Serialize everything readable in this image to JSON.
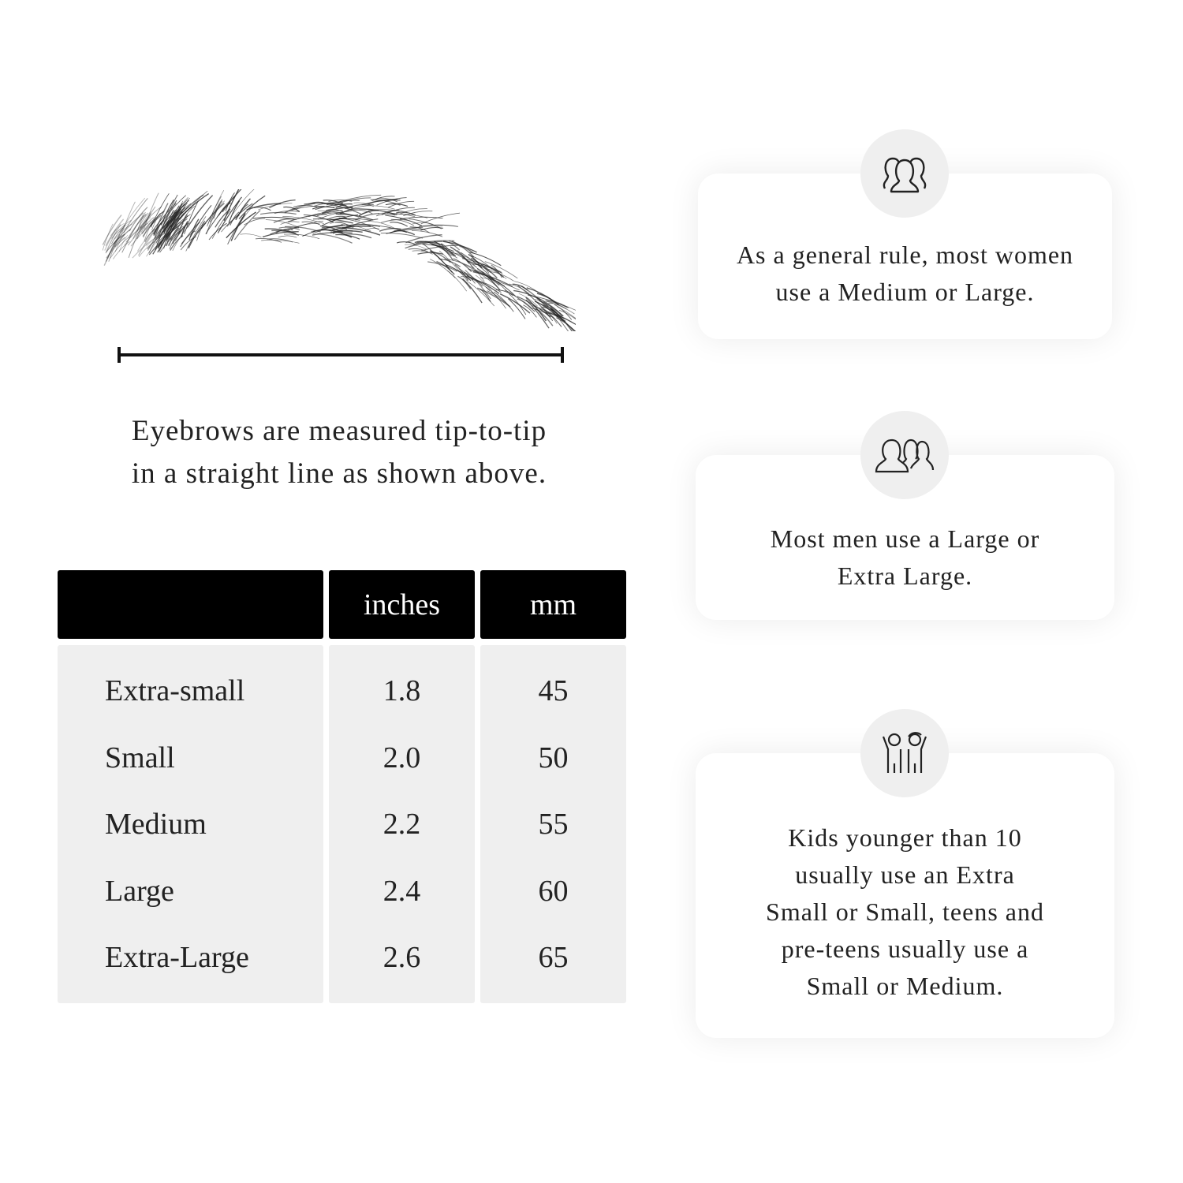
{
  "caption": {
    "line1": "Eyebrows are measured tip-to-tip",
    "line2": "in a straight line as shown above."
  },
  "table": {
    "headers": [
      "",
      "inches",
      "mm"
    ],
    "rows": [
      {
        "size": "Extra-small",
        "inches": "1.8",
        "mm": "45"
      },
      {
        "size": "Small",
        "inches": "2.0",
        "mm": "50"
      },
      {
        "size": "Medium",
        "inches": "2.2",
        "mm": "55"
      },
      {
        "size": "Large",
        "inches": "2.4",
        "mm": "60"
      },
      {
        "size": "Extra-Large",
        "inches": "2.6",
        "mm": "65"
      }
    ]
  },
  "cards": [
    {
      "icon": "women-group-icon",
      "lines": [
        "As a general rule, most women",
        "use a Medium or Large."
      ]
    },
    {
      "icon": "men-group-icon",
      "lines": [
        "Most men use a Large or",
        "Extra Large."
      ]
    },
    {
      "icon": "kids-icon",
      "lines": [
        "Kids younger than 10",
        "usually use an Extra",
        "Small or Small, teens and",
        "pre-teens usually use a",
        "Small or Medium."
      ]
    }
  ],
  "colors": {
    "header_bg": "#000000",
    "cell_bg": "#efefef",
    "circle_bg": "#efefef"
  }
}
